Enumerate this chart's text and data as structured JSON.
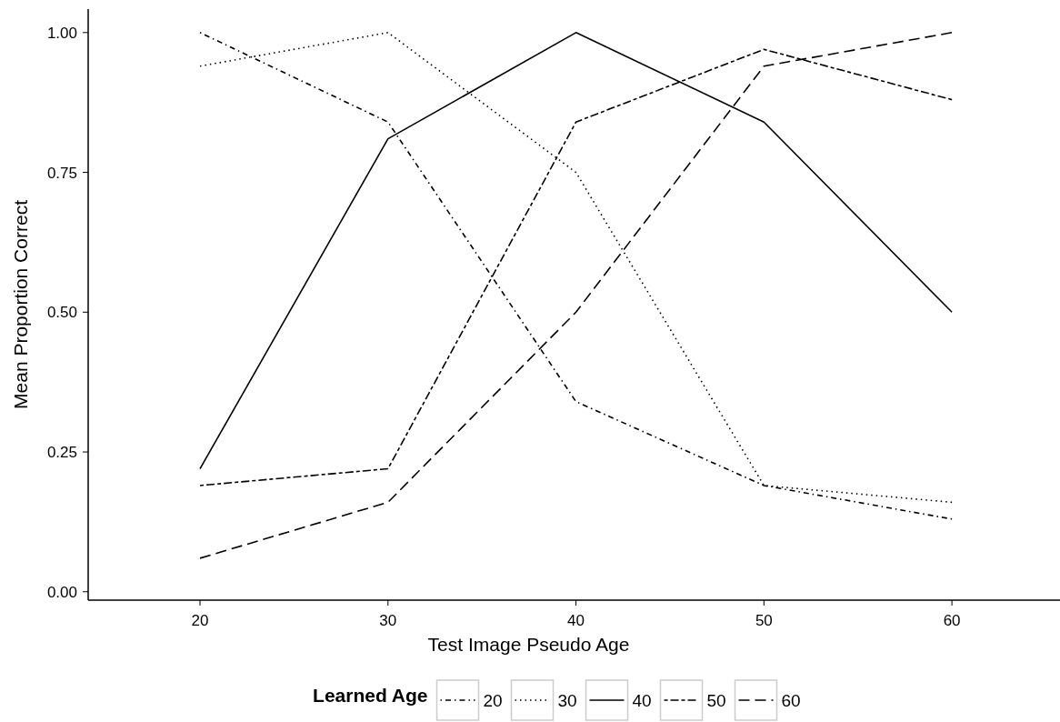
{
  "chart_data": {
    "type": "line",
    "xlabel": "Test Image Pseudo Age",
    "ylabel": "Mean Proportion Correct",
    "legend_title": "Learned Age",
    "legend": "bottom",
    "grid": false,
    "marker": "none",
    "x": [
      20,
      30,
      40,
      50,
      60
    ],
    "xlim": [
      14.05,
      65.75
    ],
    "xticks": [
      20,
      30,
      40,
      50,
      60
    ],
    "ylim": [
      -0.015,
      1.042
    ],
    "yticks": [
      {
        "value": 0,
        "label": "0.00"
      },
      {
        "value": 0.25,
        "label": "0.25"
      },
      {
        "value": 0.5,
        "label": "0.50"
      },
      {
        "value": 0.75,
        "label": "0.75"
      },
      {
        "value": 1,
        "label": "1.00"
      }
    ],
    "series": [
      {
        "name": "20",
        "color": "#000000",
        "line_style": "dotdash",
        "values": [
          1.0,
          0.84,
          0.34,
          0.19,
          0.13
        ]
      },
      {
        "name": "30",
        "color": "#000000",
        "line_style": "dotted",
        "values": [
          0.94,
          1.0,
          0.75,
          0.19,
          0.16
        ]
      },
      {
        "name": "40",
        "color": "#000000",
        "line_style": "solid",
        "values": [
          0.22,
          0.81,
          1.0,
          0.84,
          0.5
        ]
      },
      {
        "name": "50",
        "color": "#000000",
        "line_style": "twodash",
        "values": [
          0.19,
          0.22,
          0.84,
          0.97,
          0.88
        ]
      },
      {
        "name": "60",
        "color": "#000000",
        "line_style": "longdash",
        "values": [
          0.06,
          0.16,
          0.5,
          0.94,
          1.0
        ]
      }
    ]
  }
}
